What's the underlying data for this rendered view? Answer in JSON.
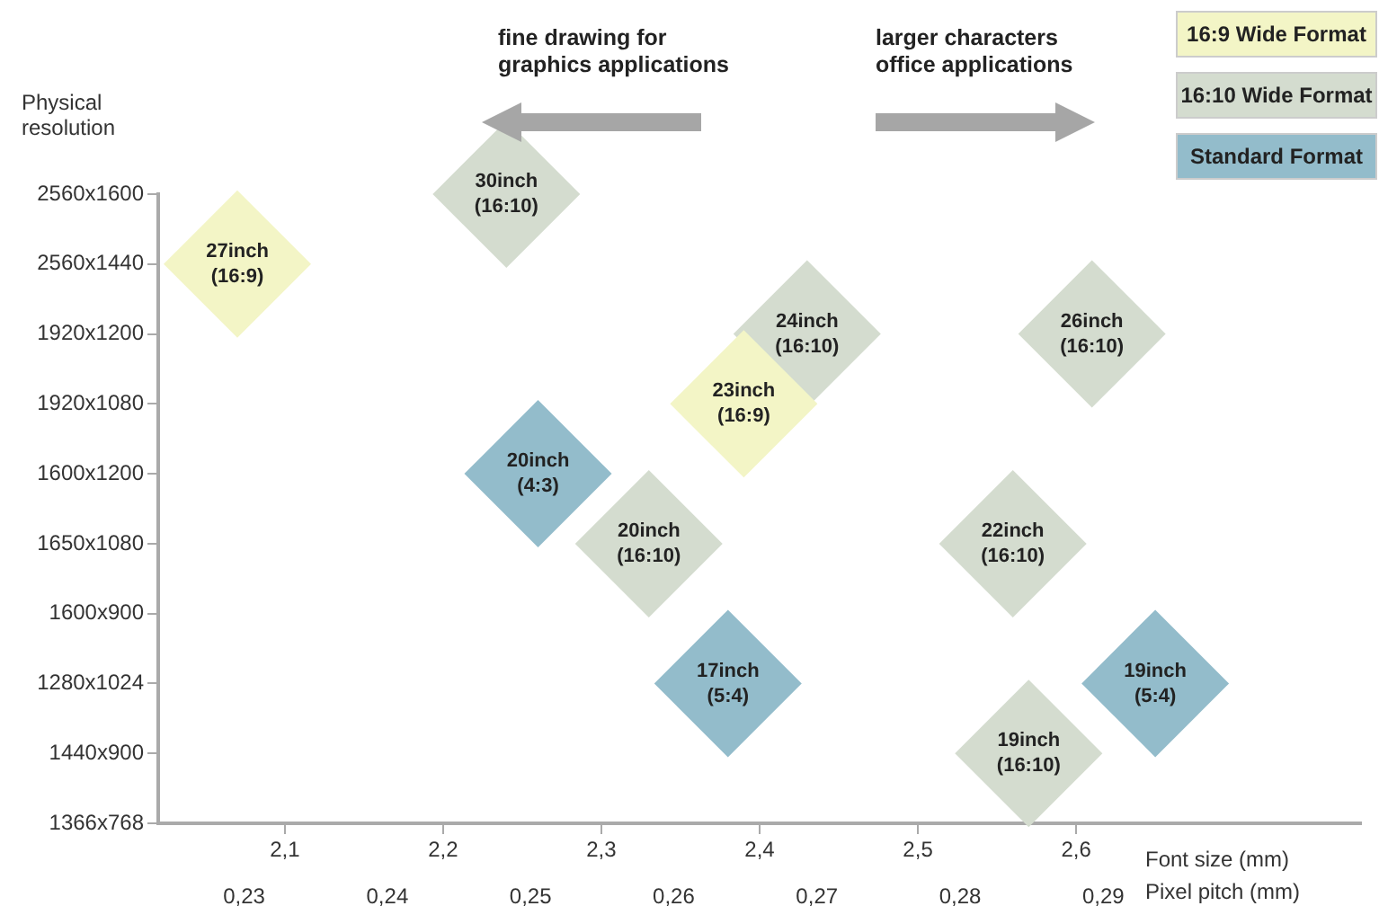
{
  "chart_data": {
    "type": "scatter",
    "orientation": "horizontal",
    "ylabel": "Physical resolution",
    "xlabel": "Font size (mm)",
    "x2label": "Pixel pitch (mm)",
    "annotations": [
      "fine drawing for\ngraphics applications",
      "larger characters\noffice applications"
    ],
    "categories": [
      "2560x1600",
      "2560x1440",
      "1920x1200",
      "1920x1080",
      "1600x1200",
      "1650x1080",
      "1600x900",
      "1280x1024",
      "1440x900",
      "1366x768"
    ],
    "xlim": [
      2.02,
      2.78
    ],
    "xticks": [
      {
        "value": 2.1,
        "label": "2,1"
      },
      {
        "value": 2.2,
        "label": "2,2"
      },
      {
        "value": 2.3,
        "label": "2,3"
      },
      {
        "value": 2.4,
        "label": "2,4"
      },
      {
        "value": 2.5,
        "label": "2,5"
      },
      {
        "value": 2.6,
        "label": "2,6"
      }
    ],
    "x2lim": [
      0.224,
      0.308
    ],
    "x2ticks": [
      {
        "value": 0.23,
        "label": "0,23"
      },
      {
        "value": 0.24,
        "label": "0,24"
      },
      {
        "value": 0.25,
        "label": "0,25"
      },
      {
        "value": 0.26,
        "label": "0,26"
      },
      {
        "value": 0.27,
        "label": "0,27"
      },
      {
        "value": 0.28,
        "label": "0,28"
      },
      {
        "value": 0.29,
        "label": "0,29"
      }
    ],
    "grid": false,
    "legend": "top right",
    "marker": "diamond",
    "series": [
      {
        "name": "16:9 Wide Format",
        "color": "#f3f5c6",
        "values": [
          null,
          2.07,
          null,
          2.39,
          null,
          null,
          null,
          null,
          null,
          null
        ],
        "value_labels": [
          null,
          "27inch\n(16:9)",
          null,
          "23inch\n(16:9)",
          null,
          null,
          null,
          null,
          null,
          null
        ]
      },
      {
        "name": "16:10 Wide Format",
        "color": "#d4dccf",
        "values": [
          2.24,
          null,
          2.43,
          null,
          null,
          2.33,
          null,
          null,
          2.57,
          null
        ],
        "value_labels": [
          "30inch\n(16:10)",
          null,
          "24inch\n(16:10)",
          null,
          null,
          "20inch\n(16:10)",
          null,
          null,
          "19inch\n(16:10)",
          null
        ]
      },
      {
        "color": "#d4dccf",
        "values": [
          null,
          null,
          2.61,
          null,
          null,
          2.56,
          null,
          null,
          null,
          null
        ],
        "value_labels": [
          null,
          null,
          "26inch\n(16:10)",
          null,
          null,
          "22inch\n(16:10)",
          null,
          null,
          null,
          null
        ]
      },
      {
        "name": "Standard Format",
        "color": "#93bccb",
        "values": [
          null,
          null,
          null,
          null,
          2.26,
          null,
          null,
          2.38,
          null,
          null
        ],
        "value_labels": [
          null,
          null,
          null,
          null,
          "20inch\n(4:3)",
          null,
          null,
          "17inch\n(5:4)",
          null,
          null
        ]
      },
      {
        "color": "#93bccb",
        "values": [
          null,
          null,
          null,
          null,
          null,
          null,
          null,
          2.65,
          null,
          null
        ],
        "value_labels": [
          null,
          null,
          null,
          null,
          null,
          null,
          null,
          "19inch\n(5:4)",
          null,
          null
        ]
      }
    ]
  }
}
